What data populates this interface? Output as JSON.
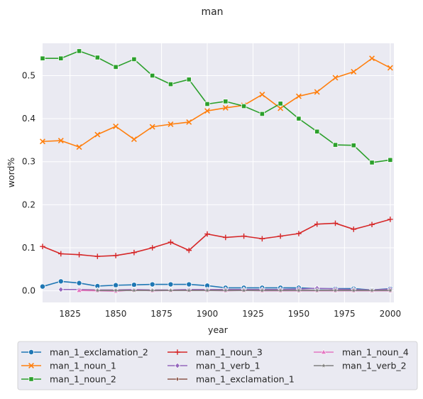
{
  "chart_data": {
    "type": "line",
    "title": "man",
    "xlabel": "year",
    "ylabel": "word%",
    "xlim": [
      1810,
      2002
    ],
    "ylim": [
      -0.027,
      0.575
    ],
    "xticks": [
      {
        "value": 1825,
        "label": "1825"
      },
      {
        "value": 1850,
        "label": "1850"
      },
      {
        "value": 1875,
        "label": "1875"
      },
      {
        "value": 1900,
        "label": "1900"
      },
      {
        "value": 1925,
        "label": "1925"
      },
      {
        "value": 1950,
        "label": "1950"
      },
      {
        "value": 1975,
        "label": "1975"
      },
      {
        "value": 2000,
        "label": "2000"
      }
    ],
    "yticks": [
      {
        "value": 0.0,
        "label": "0.0"
      },
      {
        "value": 0.1,
        "label": "0.1"
      },
      {
        "value": 0.2,
        "label": "0.2"
      },
      {
        "value": 0.3,
        "label": "0.3"
      },
      {
        "value": 0.4,
        "label": "0.4"
      },
      {
        "value": 0.5,
        "label": "0.5"
      }
    ],
    "grid": true,
    "legend_position": "bottom",
    "background_color": "#eaeaf2",
    "series": [
      {
        "name": "man_1_exclamation_2",
        "color": "#1f77b4",
        "marker": "circle",
        "x": [
          1810,
          1820,
          1830,
          1840,
          1850,
          1860,
          1870,
          1880,
          1890,
          1900,
          1910,
          1920,
          1930,
          1940,
          1950,
          1960,
          1970,
          1980,
          1990,
          2000
        ],
        "y": [
          0.01,
          0.022,
          0.018,
          0.011,
          0.013,
          0.014,
          0.015,
          0.015,
          0.015,
          0.012,
          0.007,
          0.007,
          0.007,
          0.007,
          0.007,
          0.005,
          0.005,
          0.005,
          0.002,
          0.005
        ]
      },
      {
        "name": "man_1_noun_1",
        "color": "#ff7f0e",
        "marker": "x",
        "x": [
          1810,
          1820,
          1830,
          1840,
          1850,
          1860,
          1870,
          1880,
          1890,
          1900,
          1910,
          1920,
          1930,
          1940,
          1950,
          1960,
          1970,
          1980,
          1990,
          2000
        ],
        "y": [
          0.347,
          0.349,
          0.334,
          0.363,
          0.382,
          0.352,
          0.381,
          0.387,
          0.392,
          0.418,
          0.425,
          0.431,
          0.456,
          0.424,
          0.452,
          0.462,
          0.495,
          0.509,
          0.54,
          0.518
        ]
      },
      {
        "name": "man_1_noun_2",
        "color": "#2ca02c",
        "marker": "square",
        "x": [
          1810,
          1820,
          1830,
          1840,
          1850,
          1860,
          1870,
          1880,
          1890,
          1900,
          1910,
          1920,
          1930,
          1940,
          1950,
          1960,
          1970,
          1980,
          1990,
          2000
        ],
        "y": [
          0.54,
          0.54,
          0.557,
          0.542,
          0.52,
          0.538,
          0.5,
          0.48,
          0.491,
          0.434,
          0.44,
          0.429,
          0.411,
          0.435,
          0.4,
          0.37,
          0.339,
          0.338,
          0.298,
          0.304
        ]
      },
      {
        "name": "man_1_noun_3",
        "color": "#d62728",
        "marker": "plus",
        "x": [
          1810,
          1820,
          1830,
          1840,
          1850,
          1860,
          1870,
          1880,
          1890,
          1900,
          1910,
          1920,
          1930,
          1940,
          1950,
          1960,
          1970,
          1980,
          1990,
          2000
        ],
        "y": [
          0.103,
          0.086,
          0.084,
          0.08,
          0.082,
          0.089,
          0.1,
          0.113,
          0.094,
          0.132,
          0.124,
          0.127,
          0.121,
          0.127,
          0.133,
          0.155,
          0.157,
          0.143,
          0.154,
          0.166
        ]
      },
      {
        "name": "man_1_verb_1",
        "color": "#9467bd",
        "marker": "diamond",
        "x": [
          1820,
          1830,
          1840,
          1850,
          1860,
          1870,
          1880,
          1890,
          1900,
          1910,
          1920,
          1930,
          1940,
          1950,
          1960,
          1970,
          1980,
          1990,
          2000
        ],
        "y": [
          0.003,
          0.003,
          0.002,
          0.002,
          0.003,
          0.002,
          0.002,
          0.003,
          0.003,
          0.003,
          0.003,
          0.003,
          0.003,
          0.004,
          0.006,
          0.004,
          0.003,
          0.002,
          0.004
        ]
      },
      {
        "name": "man_1_exclamation_1",
        "color": "#8c564b",
        "marker": "thin_diamond",
        "x": [
          1830,
          1840,
          1850,
          1860,
          1870,
          1880,
          1890,
          1900,
          1910,
          1920,
          1930,
          1940,
          1950,
          1960,
          1970,
          1980,
          1990,
          2000
        ],
        "y": [
          0.001,
          0.001,
          0.001,
          0.001,
          0.001,
          0.001,
          0.001,
          0.001,
          0.001,
          0.001,
          0.001,
          0.001,
          0.001,
          0.001,
          0.001,
          0.001,
          0.001,
          0.001
        ]
      },
      {
        "name": "man_1_noun_4",
        "color": "#e377c2",
        "marker": "triangle",
        "x": [
          1830,
          1840,
          1850,
          1860,
          1870,
          1880,
          1890,
          1900,
          1910,
          1920,
          1930,
          1940,
          1950,
          1960,
          1970,
          1980,
          1990,
          2000
        ],
        "y": [
          0.001,
          0.0,
          -0.001,
          0.002,
          0.0,
          0.001,
          0.001,
          0.001,
          0.0,
          0.001,
          0.0,
          0.0,
          0.0,
          0.0,
          0.0,
          0.0,
          0.0,
          0.0
        ]
      },
      {
        "name": "man_1_verb_2",
        "color": "#7f7f7f",
        "marker": "star",
        "x": [
          1840,
          1850,
          1860,
          1870,
          1880,
          1890,
          1900,
          1910,
          1920,
          1930,
          1940,
          1950,
          1960,
          1970,
          1980,
          1990,
          2000
        ],
        "y": [
          0.001,
          0.001,
          0.001,
          0.001,
          0.001,
          0.001,
          0.001,
          0.001,
          0.001,
          0.001,
          0.001,
          0.001,
          0.001,
          0.001,
          0.001,
          0.001,
          0.001
        ]
      }
    ]
  }
}
